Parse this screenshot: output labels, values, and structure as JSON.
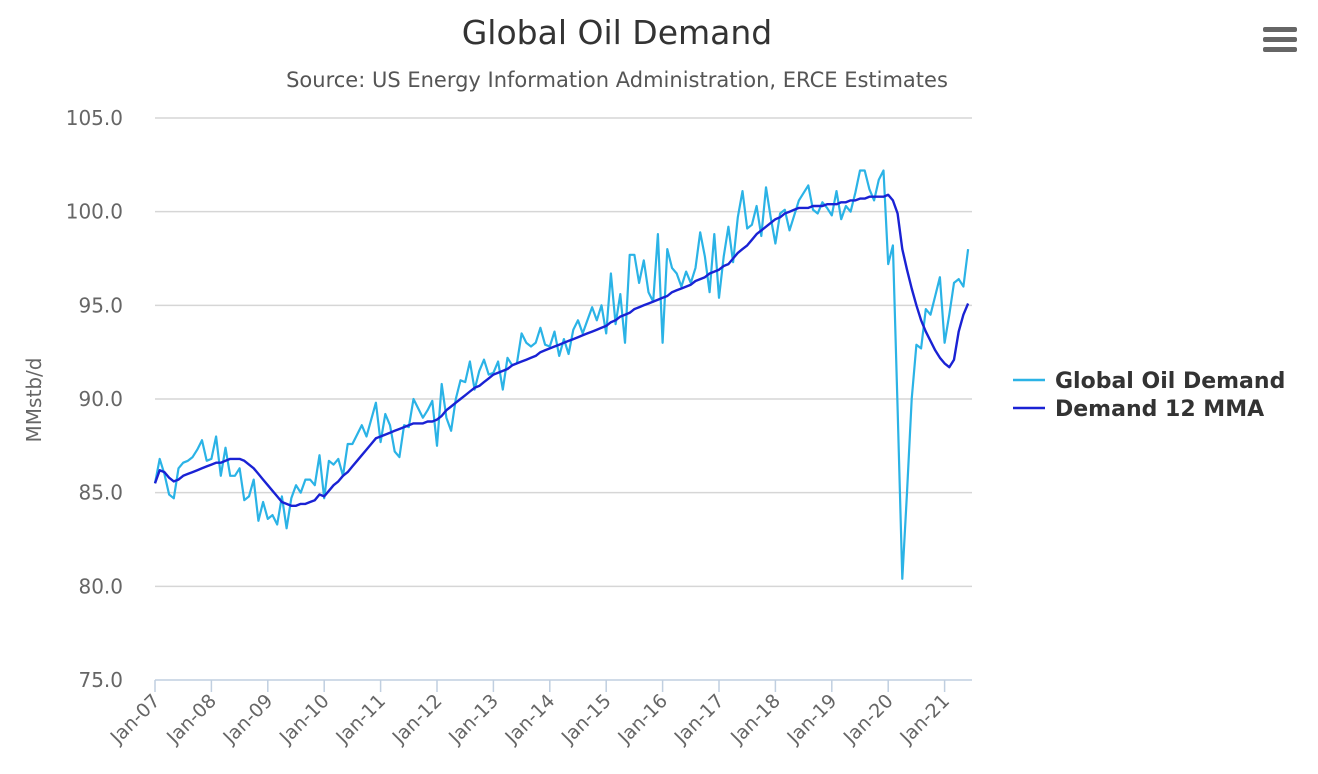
{
  "chart_data": {
    "type": "line",
    "title": "Global Oil Demand",
    "subtitle": "Source: US Energy Information Administration, ERCE Estimates",
    "ylabel": "MMstb/d",
    "xlabel": "",
    "ylim": [
      75,
      105
    ],
    "yticks": [
      "75.0",
      "80.0",
      "85.0",
      "90.0",
      "95.0",
      "100.0",
      "105.0"
    ],
    "xticks": [
      "Jan-07",
      "Jan-08",
      "Jan-09",
      "Jan-10",
      "Jan-11",
      "Jan-12",
      "Jan-13",
      "Jan-14",
      "Jan-15",
      "Jan-16",
      "Jan-17",
      "Jan-18",
      "Jan-19",
      "Jan-20",
      "Jan-21"
    ],
    "x_start": "Jan-07",
    "x_end": "Jun-21",
    "x_frequency": "monthly",
    "grid": "horizontal",
    "legend_position": "right",
    "series": [
      {
        "name": "Global Oil Demand",
        "color": "#2bb3e6",
        "values": [
          85.5,
          86.8,
          86.0,
          84.9,
          84.7,
          86.3,
          86.6,
          86.7,
          86.9,
          87.3,
          87.8,
          86.7,
          86.8,
          88.0,
          85.9,
          87.4,
          85.9,
          85.9,
          86.3,
          84.6,
          84.8,
          85.7,
          83.5,
          84.5,
          83.6,
          83.8,
          83.3,
          84.8,
          83.1,
          84.7,
          85.4,
          85.0,
          85.7,
          85.7,
          85.4,
          87.0,
          84.7,
          86.7,
          86.5,
          86.8,
          85.9,
          87.6,
          87.6,
          88.1,
          88.6,
          88.0,
          88.9,
          89.8,
          87.7,
          89.2,
          88.6,
          87.2,
          86.9,
          88.6,
          88.5,
          90.0,
          89.5,
          89.0,
          89.4,
          89.9,
          87.5,
          90.8,
          89.0,
          88.3,
          90.0,
          91.0,
          90.9,
          92.0,
          90.5,
          91.5,
          92.1,
          91.3,
          91.4,
          92.0,
          90.5,
          92.2,
          91.8,
          91.9,
          93.5,
          93.0,
          92.8,
          93.0,
          93.8,
          92.9,
          92.8,
          93.6,
          92.3,
          93.2,
          92.4,
          93.7,
          94.2,
          93.5,
          94.2,
          94.9,
          94.2,
          95.0,
          93.5,
          96.7,
          94.0,
          95.6,
          93.0,
          97.7,
          97.7,
          96.2,
          97.4,
          95.7,
          95.2,
          98.8,
          93.0,
          98.0,
          97.0,
          96.7,
          96.0,
          96.8,
          96.2,
          97.0,
          98.9,
          97.6,
          95.7,
          98.8,
          95.4,
          97.6,
          99.2,
          97.3,
          99.7,
          101.1,
          99.1,
          99.3,
          100.3,
          98.7,
          101.3,
          99.7,
          98.3,
          99.9,
          100.1,
          99.0,
          99.8,
          100.6,
          101.0,
          101.4,
          100.1,
          99.9,
          100.5,
          100.2,
          99.8,
          101.1,
          99.6,
          100.3,
          100.0,
          101.0,
          102.2,
          102.2,
          101.2,
          100.6,
          101.7,
          102.2,
          97.2,
          98.2,
          89.5,
          80.4,
          85.0,
          90.0,
          92.9,
          92.7,
          94.8,
          94.5,
          95.5,
          96.5,
          93.0,
          94.5,
          96.2,
          96.4,
          96.0,
          98.0
        ]
      },
      {
        "name": "Demand 12 MMA",
        "color": "#1a22d4",
        "values": [
          85.5,
          86.2,
          86.1,
          85.8,
          85.6,
          85.7,
          85.9,
          86.0,
          86.1,
          86.2,
          86.3,
          86.4,
          86.5,
          86.6,
          86.6,
          86.7,
          86.8,
          86.8,
          86.8,
          86.7,
          86.5,
          86.3,
          86.0,
          85.7,
          85.4,
          85.1,
          84.8,
          84.5,
          84.4,
          84.3,
          84.3,
          84.4,
          84.4,
          84.5,
          84.6,
          84.9,
          84.8,
          85.1,
          85.4,
          85.6,
          85.9,
          86.1,
          86.4,
          86.7,
          87.0,
          87.3,
          87.6,
          87.9,
          88.0,
          88.1,
          88.2,
          88.3,
          88.4,
          88.5,
          88.6,
          88.7,
          88.7,
          88.7,
          88.8,
          88.8,
          88.9,
          89.1,
          89.4,
          89.6,
          89.8,
          90.0,
          90.2,
          90.4,
          90.6,
          90.7,
          90.9,
          91.1,
          91.3,
          91.4,
          91.5,
          91.6,
          91.8,
          91.9,
          92.0,
          92.1,
          92.2,
          92.3,
          92.5,
          92.6,
          92.7,
          92.8,
          92.9,
          93.0,
          93.1,
          93.2,
          93.3,
          93.4,
          93.5,
          93.6,
          93.7,
          93.8,
          93.9,
          94.1,
          94.2,
          94.4,
          94.5,
          94.6,
          94.8,
          94.9,
          95.0,
          95.1,
          95.2,
          95.3,
          95.4,
          95.5,
          95.7,
          95.8,
          95.9,
          96.0,
          96.1,
          96.3,
          96.4,
          96.5,
          96.7,
          96.8,
          96.9,
          97.1,
          97.2,
          97.5,
          97.8,
          98.0,
          98.2,
          98.5,
          98.8,
          99.0,
          99.2,
          99.4,
          99.6,
          99.7,
          99.9,
          100.0,
          100.1,
          100.2,
          100.2,
          100.2,
          100.3,
          100.3,
          100.3,
          100.4,
          100.4,
          100.4,
          100.5,
          100.5,
          100.6,
          100.6,
          100.7,
          100.7,
          100.8,
          100.8,
          100.8,
          100.8,
          100.9,
          100.6,
          99.9,
          98.0,
          96.9,
          95.9,
          95.0,
          94.2,
          93.6,
          93.1,
          92.6,
          92.2,
          91.9,
          91.7,
          92.1,
          93.6,
          94.5,
          95.1
        ]
      }
    ]
  },
  "menu_icon": "hamburger-menu-icon"
}
